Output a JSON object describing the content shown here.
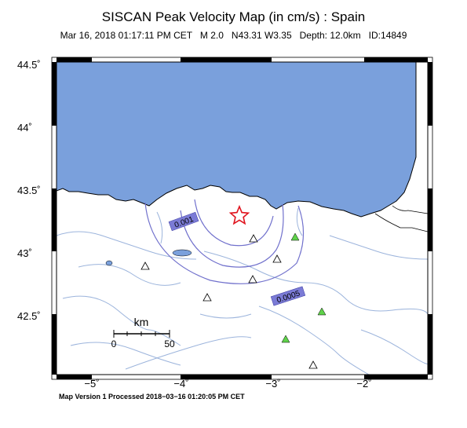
{
  "header": {
    "title": "SISCAN Peak Velocity Map (in cm/s) : Spain",
    "subtitle": "Mar 16, 2018 01:17:11 PM CET   M 2.0   N43.31 W3.35   Depth: 12.0km   ID:14849"
  },
  "axes": {
    "lat_labels": [
      "44.5˚",
      "44˚",
      "43.5˚",
      "43˚",
      "42.5˚"
    ],
    "lon_labels": [
      "−5˚",
      "−4˚",
      "−3˚",
      "−2˚"
    ]
  },
  "contours": [
    {
      "label": "0.001"
    },
    {
      "label": "0.0005"
    }
  ],
  "scale_bar": {
    "unit": "km",
    "min_label": "0",
    "max_label": "50"
  },
  "footer": {
    "text": "Map Version 1 Processed 2018−03−16 01:20:05 PM CET"
  },
  "colors": {
    "sea": "#7aa0dc",
    "contour": "#7070cc",
    "contour_label_bg": "#7b7bd6",
    "rivers": "#9cb4dc",
    "epicenter": "#e0141e",
    "station_green": "#5fd24a"
  }
}
